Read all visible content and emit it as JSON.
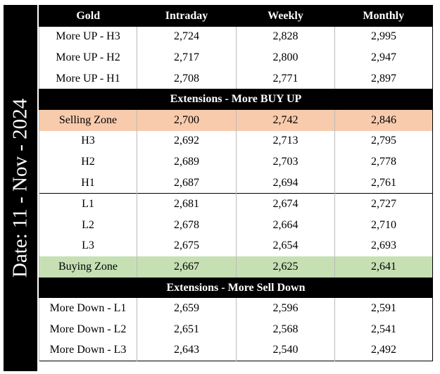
{
  "date_label": "Date: 11 - Nov - 2024",
  "table": {
    "header": [
      "Gold",
      "Intraday",
      "Weekly",
      "Monthly"
    ],
    "rows": [
      {
        "cells": [
          "More UP - H3",
          "2,724",
          "2,828",
          "2,995"
        ]
      },
      {
        "cells": [
          "More UP - H2",
          "2,717",
          "2,800",
          "2,947"
        ]
      },
      {
        "cells": [
          "More UP - H1",
          "2,708",
          "2,771",
          "2,897"
        ]
      },
      {
        "title": "Extensions - More BUY UP"
      },
      {
        "cells": [
          "Selling Zone",
          "2,700",
          "2,742",
          "2,846"
        ],
        "color": "#f8cbad"
      },
      {
        "cells": [
          "H3",
          "2,692",
          "2,713",
          "2,795"
        ]
      },
      {
        "cells": [
          "H2",
          "2,689",
          "2,703",
          "2,778"
        ]
      },
      {
        "cells": [
          "H1",
          "2,687",
          "2,694",
          "2,761"
        ]
      },
      {
        "cells": [
          "L1",
          "2,681",
          "2,674",
          "2,727"
        ],
        "checked": true,
        "divider": true
      },
      {
        "cells": [
          "L2",
          "2,678",
          "2,664",
          "2,710"
        ],
        "checked": true
      },
      {
        "cells": [
          "L3",
          "2,675",
          "2,654",
          "2,693"
        ],
        "checked": true
      },
      {
        "cells": [
          "Buying Zone",
          "2,667",
          "2,625",
          "2,641"
        ],
        "color": "#c6e0b4"
      },
      {
        "title": "Extensions - More Sell Down"
      },
      {
        "cells": [
          "More Down - L1",
          "2,659",
          "2,596",
          "2,591"
        ]
      },
      {
        "cells": [
          "More Down - L2",
          "2,651",
          "2,568",
          "2,541"
        ]
      },
      {
        "cells": [
          "More Down - L3",
          "2,643",
          "2,540",
          "2,492"
        ]
      }
    ]
  }
}
